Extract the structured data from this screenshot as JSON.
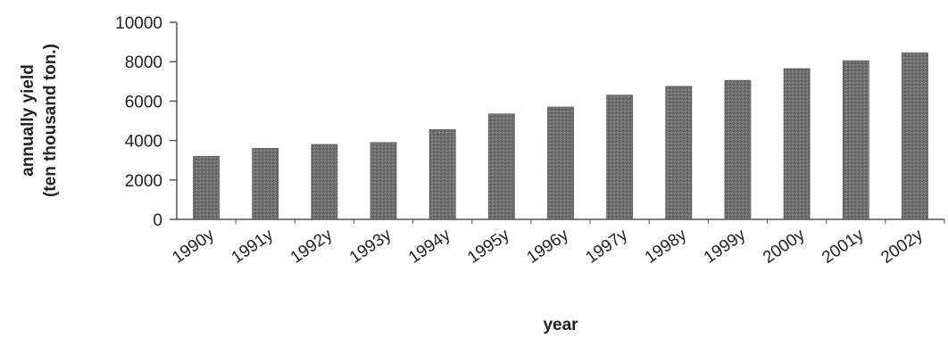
{
  "chart_data": {
    "type": "bar",
    "categories": [
      "1990y",
      "1991y",
      "1992y",
      "1993y",
      "1994y",
      "1995y",
      "1996y",
      "1997y",
      "1998y",
      "1999y",
      "2000y",
      "2001y",
      "2002y"
    ],
    "values": [
      3200,
      3600,
      3800,
      3900,
      4550,
      5350,
      5700,
      6300,
      6750,
      7050,
      7650,
      8050,
      8450
    ],
    "title": "",
    "xlabel": "year",
    "ylabel": [
      "annually yield",
      "(ten thousand ton.)"
    ],
    "ylim": [
      0,
      10000
    ],
    "yticks": [
      0,
      2000,
      4000,
      6000,
      8000,
      10000
    ],
    "grid": false,
    "legend": "none",
    "bar_color": "#6e6e6e",
    "axis_color": "#555555"
  }
}
